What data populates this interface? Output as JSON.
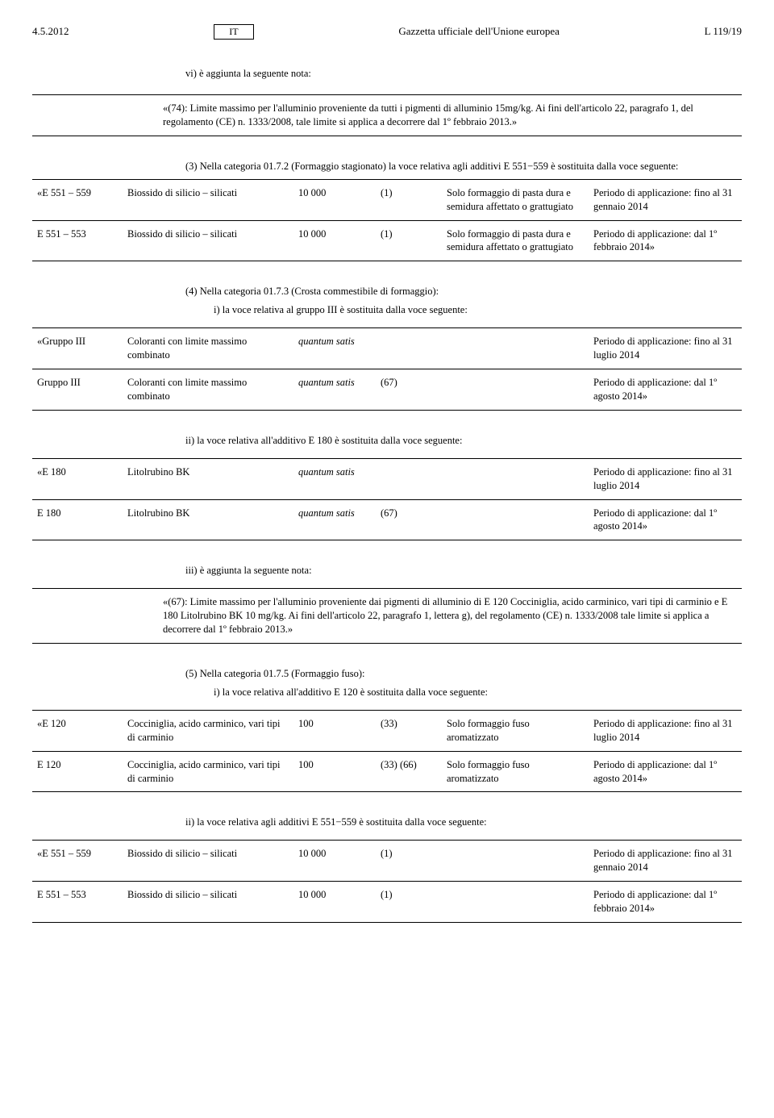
{
  "header": {
    "date": "4.5.2012",
    "lang": "IT",
    "center": "Gazzetta ufficiale dell'Unione europea",
    "right": "L 119/19"
  },
  "note_vi": {
    "label": "vi) è aggiunta la seguente nota:",
    "text": "«(74): Limite massimo per l'alluminio proveniente da tutti i pigmenti di alluminio 15mg/kg. Ai fini dell'articolo 22, paragrafo 1, del regolamento (CE) n. 1333/2008, tale limite si applica a decorrere dal 1º febbraio 2013.»"
  },
  "cat_01_7_2": {
    "label": "(3) Nella categoria 01.7.2 (Formaggio stagionato) la voce relativa agli additivi E 551−559 è sostituita dalla voce seguente:",
    "rows": [
      {
        "code": "«E 551 – 559",
        "name": "Biossido di silicio – silicati",
        "qty": "10 000",
        "mark": "(1)",
        "restr": "Solo formaggio di pasta dura e semidura affettato o grattugiato",
        "period": "Periodo di applicazione: fino al 31 gennaio 2014"
      },
      {
        "code": "E 551 – 553",
        "name": "Biossido di silicio – silicati",
        "qty": "10 000",
        "mark": "(1)",
        "restr": "Solo formaggio di pasta dura e semidura affettato o grattugiato",
        "period": "Periodo di applicazione: dal 1º febbraio 2014»"
      }
    ]
  },
  "cat_01_7_3": {
    "label": "(4) Nella categoria 01.7.3 (Crosta commestibile di formaggio):",
    "sub_i": "i) la voce relativa al gruppo III è sostituita dalla voce seguente:",
    "rows_i": [
      {
        "code": "«Gruppo III",
        "name": "Coloranti con limite massimo combinato",
        "qty": "quantum satis",
        "mark": "",
        "restr": "",
        "period": "Periodo di applicazione: fino al 31 luglio 2014"
      },
      {
        "code": "Gruppo III",
        "name": "Coloranti con limite massimo combinato",
        "qty": "quantum satis",
        "mark": "(67)",
        "restr": "",
        "period": "Periodo di applicazione: dal 1º agosto 2014»"
      }
    ],
    "sub_ii": "ii) la voce relativa all'additivo E 180 è sostituita dalla voce seguente:",
    "rows_ii": [
      {
        "code": "«E 180",
        "name": "Litolrubino BK",
        "qty": "quantum satis",
        "mark": "",
        "restr": "",
        "period": "Periodo di applicazione: fino al 31 luglio 2014"
      },
      {
        "code": "E 180",
        "name": "Litolrubino BK",
        "qty": "quantum satis",
        "mark": "(67)",
        "restr": "",
        "period": "Periodo di applicazione: dal 1º agosto 2014»"
      }
    ],
    "sub_iii": "iii) è aggiunta la seguente nota:",
    "note_iii": "«(67): Limite massimo per l'alluminio proveniente dai pigmenti di alluminio di E 120 Cocciniglia, acido carminico, vari tipi di carminio e E 180 Litolrubino BK 10 mg/kg. Ai fini dell'articolo 22, paragrafo 1, lettera g), del regolamento (CE) n. 1333/2008 tale limite si applica a decorrere dal 1º febbraio 2013.»"
  },
  "cat_01_7_5": {
    "label": "(5) Nella categoria 01.7.5 (Formaggio fuso):",
    "sub_i": "i) la voce relativa all'additivo E 120 è sostituita dalla voce seguente:",
    "rows_i": [
      {
        "code": "«E 120",
        "name": "Cocciniglia, acido carminico, vari tipi di carminio",
        "qty": "100",
        "mark": "(33)",
        "restr": "Solo formaggio fuso aromatizzato",
        "period": "Periodo di applicazione: fino al 31 luglio 2014"
      },
      {
        "code": "E 120",
        "name": "Cocciniglia, acido carminico, vari tipi di carminio",
        "qty": "100",
        "mark": "(33) (66)",
        "restr": "Solo formaggio fuso aromatizzato",
        "period": "Periodo di applicazione: dal 1º agosto 2014»"
      }
    ],
    "sub_ii": "ii) la voce relativa agli additivi E 551−559 è sostituita dalla voce seguente:",
    "rows_ii": [
      {
        "code": "«E 551 – 559",
        "name": "Biossido di silicio – silicati",
        "qty": "10 000",
        "mark": "(1)",
        "restr": "",
        "period": "Periodo di applicazione: fino al 31 gennaio 2014"
      },
      {
        "code": "E 551 – 553",
        "name": "Biossido di silicio – silicati",
        "qty": "10 000",
        "mark": "(1)",
        "restr": "",
        "period": "Periodo di applicazione: dal 1º febbraio 2014»"
      }
    ]
  }
}
